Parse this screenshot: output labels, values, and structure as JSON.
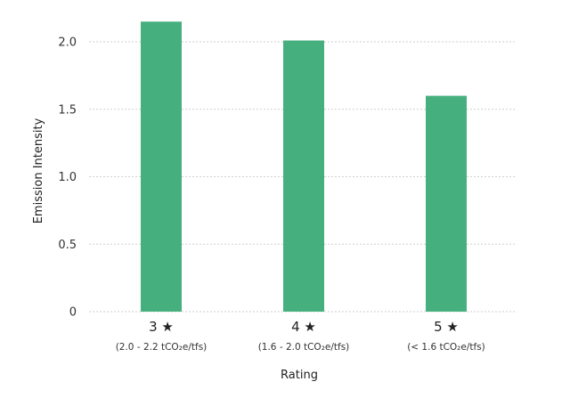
{
  "chart_data": {
    "type": "bar",
    "categories": [
      "3 ★",
      "4 ★",
      "5 ★"
    ],
    "category_sublabels": [
      "(2.0 - 2.2 tCO₂e/tfs)",
      "(1.6 - 2.0 tCO₂e/tfs)",
      "(< 1.6 tCO₂e/tfs)"
    ],
    "values": [
      2.15,
      2.01,
      1.6
    ],
    "title": "",
    "xlabel": "Rating",
    "ylabel": "Emission Intensity",
    "ylim": [
      0,
      2.15
    ],
    "yticks": [
      {
        "value": 0,
        "label": "0"
      },
      {
        "value": 0.5,
        "label": "0.5"
      },
      {
        "value": 1.0,
        "label": "1.0"
      },
      {
        "value": 1.5,
        "label": "1.5"
      },
      {
        "value": 2.0,
        "label": "2.0"
      }
    ],
    "grid": true,
    "bar_color": "#45b07e"
  }
}
